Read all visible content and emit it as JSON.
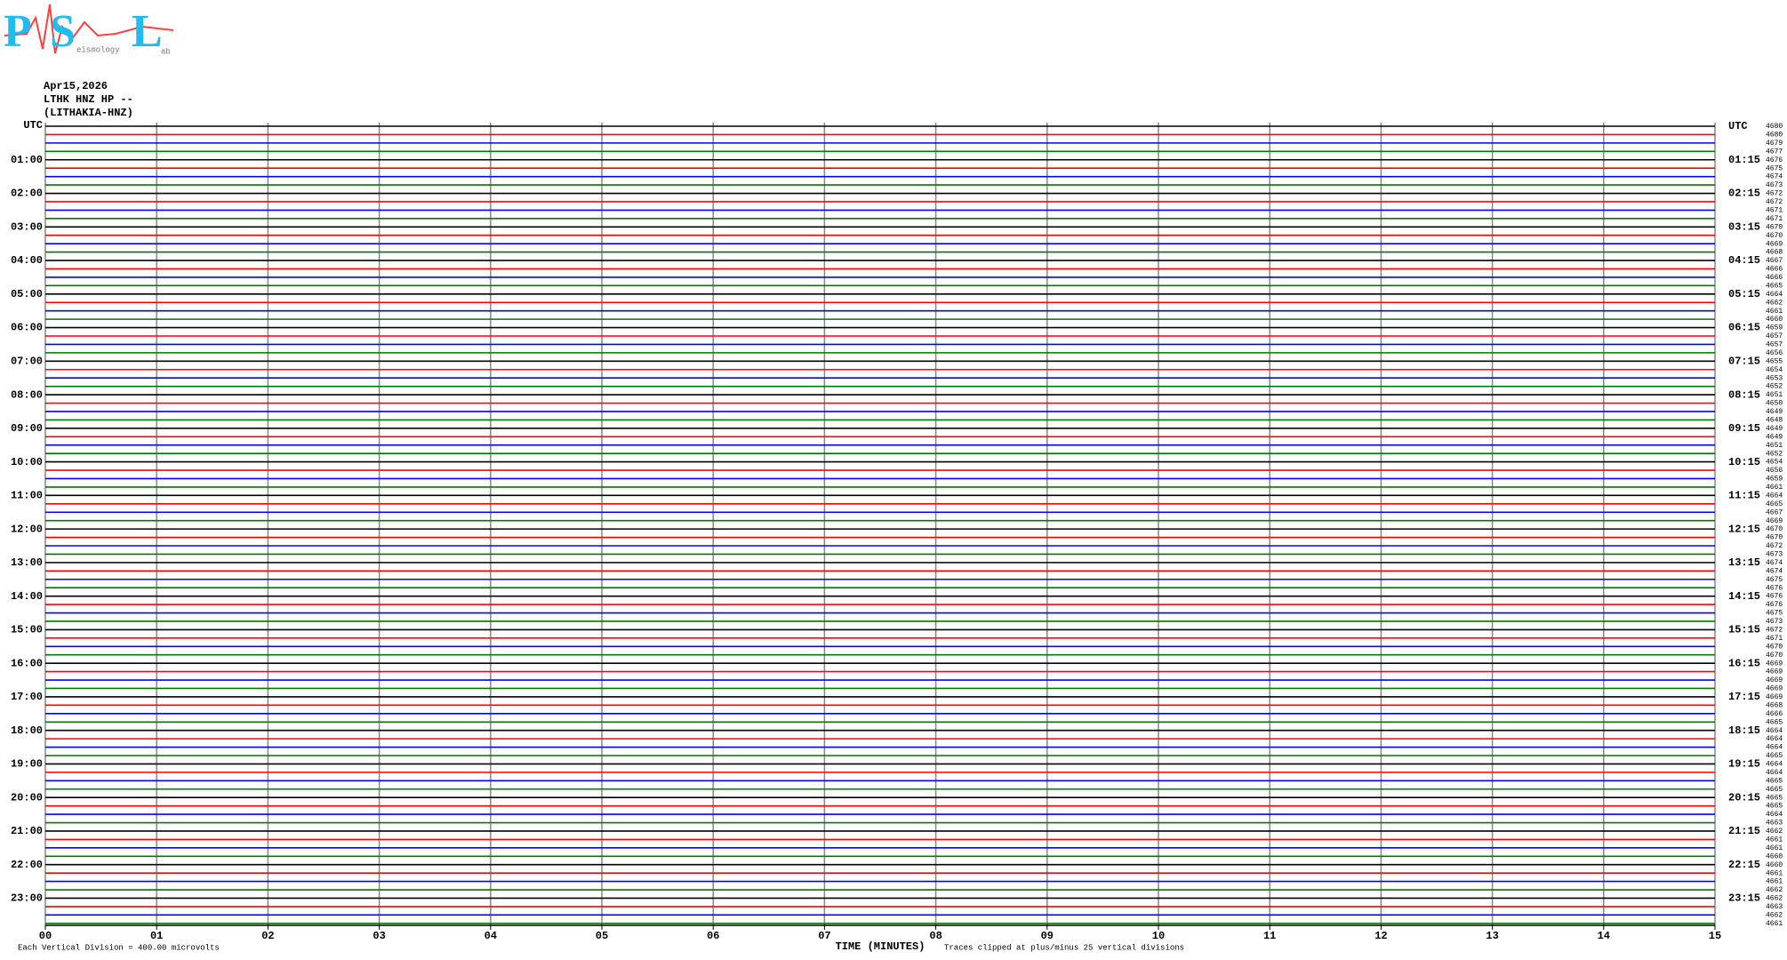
{
  "chart_data": {
    "type": "helicorder",
    "logo": {
      "letters": [
        "P",
        "S",
        "L"
      ],
      "words": [
        "eismology",
        "ab"
      ]
    },
    "date": "Apr15,2026",
    "station": "LTHK HNZ HP --",
    "station_name": "(LITHAKIA-HNZ)",
    "left_labels": [
      "UTC",
      "01:00",
      "02:00",
      "03:00",
      "04:00",
      "05:00",
      "06:00",
      "07:00",
      "08:00",
      "09:00",
      "10:00",
      "11:00",
      "12:00",
      "13:00",
      "14:00",
      "15:00",
      "16:00",
      "17:00",
      "18:00",
      "19:00",
      "20:00",
      "21:00",
      "22:00",
      "23:00"
    ],
    "right_labels": [
      "UTC",
      "01:15",
      "02:15",
      "03:15",
      "04:15",
      "05:15",
      "06:15",
      "07:15",
      "08:15",
      "09:15",
      "10:15",
      "11:15",
      "12:15",
      "13:15",
      "14:15",
      "15:15",
      "16:15",
      "17:15",
      "18:15",
      "19:15",
      "20:15",
      "21:15",
      "22:15",
      "23:15"
    ],
    "trace_colors": [
      "#000000",
      "#ff0000",
      "#0000ff",
      "#007700"
    ],
    "trace_values": [
      4680,
      4680,
      4679,
      4677,
      4676,
      4675,
      4674,
      4673,
      4672,
      4672,
      4671,
      4671,
      4670,
      4670,
      4669,
      4668,
      4667,
      4666,
      4666,
      4665,
      4664,
      4662,
      4661,
      4660,
      4659,
      4657,
      4657,
      4656,
      4655,
      4654,
      4653,
      4652,
      4651,
      4650,
      4649,
      4648,
      4649,
      4649,
      4651,
      4652,
      4654,
      4656,
      4659,
      4661,
      4664,
      4665,
      4667,
      4669,
      4670,
      4670,
      4672,
      4673,
      4674,
      4674,
      4675,
      4676,
      4676,
      4676,
      4675,
      4673,
      4672,
      4671,
      4670,
      4670,
      4669,
      4669,
      4669,
      4669,
      4669,
      4668,
      4666,
      4665,
      4664,
      4664,
      4664,
      4665,
      4664,
      4664,
      4665,
      4665,
      4665,
      4665,
      4664,
      4663,
      4662,
      4661,
      4661,
      4660,
      4660,
      4661,
      4661,
      4662,
      4662,
      4663,
      4662,
      4661
    ],
    "xlim": [
      0,
      15
    ],
    "xticks": [
      {
        "value": 0,
        "label": "00"
      },
      {
        "value": 1,
        "label": "01"
      },
      {
        "value": 2,
        "label": "02"
      },
      {
        "value": 3,
        "label": "03"
      },
      {
        "value": 4,
        "label": "04"
      },
      {
        "value": 5,
        "label": "05"
      },
      {
        "value": 6,
        "label": "06"
      },
      {
        "value": 7,
        "label": "07"
      },
      {
        "value": 8,
        "label": "08"
      },
      {
        "value": 9,
        "label": "09"
      },
      10,
      11,
      12,
      13,
      14,
      15
    ],
    "x_label": "TIME (MINUTES)",
    "scale_note": "Each Vertical Division =  400.00 microvolts",
    "clip_note": "Traces clipped at plus/minus 25 vertical divisions",
    "grid": true
  }
}
